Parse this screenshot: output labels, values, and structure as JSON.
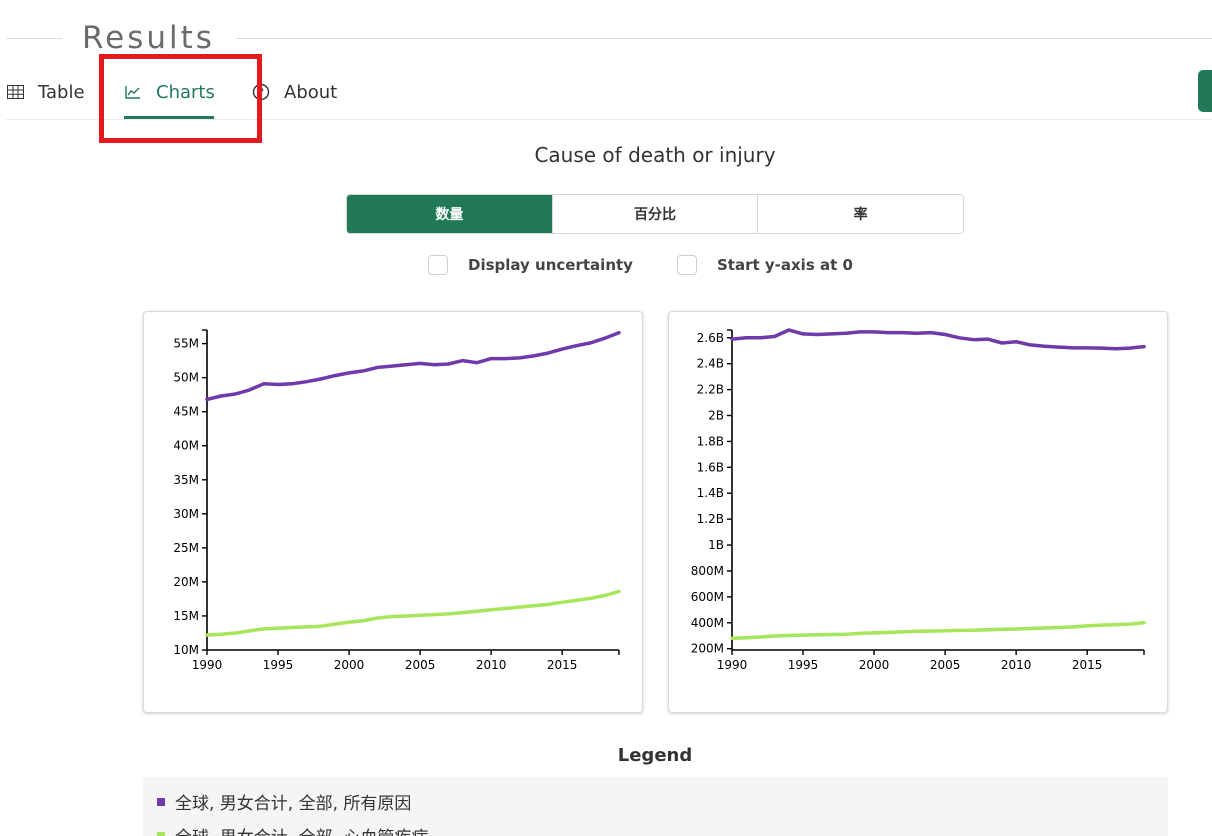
{
  "header": {
    "title": "Results"
  },
  "tabs": [
    {
      "label": "Table",
      "icon": "table-grid-icon"
    },
    {
      "label": "Charts",
      "icon": "line-chart-icon"
    },
    {
      "label": "About",
      "icon": "help-circle-icon"
    }
  ],
  "section_title": "Cause of death or injury",
  "metric_toggle": {
    "options": [
      "数量",
      "百分比",
      "率"
    ],
    "selected": "数量"
  },
  "options": {
    "uncertainty_label": "Display uncertainty",
    "yzero_label": "Start y-axis at 0"
  },
  "legend": {
    "title": "Legend",
    "items": [
      {
        "label": "全球, 男女合计, 全部, 所有原因",
        "color": "#6f3aab"
      },
      {
        "label": "全球, 男女合计, 全部, 心血管疾病",
        "color": "#a7e65a"
      }
    ]
  },
  "colors": {
    "accent": "#217a55",
    "highlight": "#e3191b"
  },
  "chart_data": [
    {
      "type": "line",
      "title": "",
      "xlabel": "",
      "ylabel": "",
      "xlim": [
        1990,
        2019
      ],
      "ylim": [
        10000000,
        57000000
      ],
      "x_ticks": [
        1990,
        1995,
        2000,
        2005,
        2010,
        2015
      ],
      "y_ticks": [
        10000000,
        15000000,
        20000000,
        25000000,
        30000000,
        35000000,
        40000000,
        45000000,
        50000000,
        55000000
      ],
      "y_tick_labels": [
        "10M",
        "15M",
        "20M",
        "25M",
        "30M",
        "35M",
        "40M",
        "45M",
        "50M",
        "55M"
      ],
      "x": [
        1990,
        1991,
        1992,
        1993,
        1994,
        1995,
        1996,
        1997,
        1998,
        1999,
        2000,
        2001,
        2002,
        2003,
        2004,
        2005,
        2006,
        2007,
        2008,
        2009,
        2010,
        2011,
        2012,
        2013,
        2014,
        2015,
        2016,
        2017,
        2018,
        2019
      ],
      "series": [
        {
          "name": "全球, 男女合计, 全部, 所有原因",
          "color": "#6f3aab",
          "values": [
            46800000,
            47300000,
            47600000,
            48200000,
            49100000,
            49000000,
            49100000,
            49400000,
            49800000,
            50300000,
            50700000,
            51000000,
            51500000,
            51700000,
            51900000,
            52100000,
            51900000,
            52000000,
            52500000,
            52200000,
            52800000,
            52800000,
            52900000,
            53200000,
            53600000,
            54200000,
            54700000,
            55100000,
            55800000,
            56600000
          ]
        },
        {
          "name": "全球, 男女合计, 全部, 心血管疾病",
          "color": "#a7e65a",
          "values": [
            12200000,
            12300000,
            12500000,
            12800000,
            13100000,
            13200000,
            13300000,
            13400000,
            13500000,
            13800000,
            14100000,
            14300000,
            14700000,
            14900000,
            15000000,
            15100000,
            15200000,
            15300000,
            15500000,
            15700000,
            15900000,
            16100000,
            16300000,
            16500000,
            16700000,
            17000000,
            17300000,
            17600000,
            18000000,
            18600000
          ]
        }
      ]
    },
    {
      "type": "line",
      "title": "",
      "xlabel": "",
      "ylabel": "",
      "xlim": [
        1990,
        2019
      ],
      "ylim": [
        190000000,
        2660000000
      ],
      "x_ticks": [
        1990,
        1995,
        2000,
        2005,
        2010,
        2015
      ],
      "y_ticks": [
        200000000,
        400000000,
        600000000,
        800000000,
        1000000000,
        1200000000,
        1400000000,
        1600000000,
        1800000000,
        2000000000,
        2200000000,
        2400000000,
        2600000000
      ],
      "y_tick_labels": [
        "200M",
        "400M",
        "600M",
        "800M",
        "1B",
        "1.2B",
        "1.4B",
        "1.6B",
        "1.8B",
        "2B",
        "2.2B",
        "2.4B",
        "2.6B"
      ],
      "x": [
        1990,
        1991,
        1992,
        1993,
        1994,
        1995,
        1996,
        1997,
        1998,
        1999,
        2000,
        2001,
        2002,
        2003,
        2004,
        2005,
        2006,
        2007,
        2008,
        2009,
        2010,
        2011,
        2012,
        2013,
        2014,
        2015,
        2016,
        2017,
        2018,
        2019
      ],
      "series": [
        {
          "name": "全球, 男女合计, 全部, 所有原因",
          "color": "#6f3aab",
          "values": [
            2590000000,
            2600000000,
            2600000000,
            2610000000,
            2660000000,
            2630000000,
            2625000000,
            2630000000,
            2635000000,
            2645000000,
            2645000000,
            2640000000,
            2640000000,
            2635000000,
            2640000000,
            2625000000,
            2600000000,
            2585000000,
            2590000000,
            2560000000,
            2570000000,
            2545000000,
            2535000000,
            2528000000,
            2522000000,
            2522000000,
            2520000000,
            2516000000,
            2520000000,
            2532000000
          ]
        },
        {
          "name": "全球, 男女合计, 全部, 心血管疾病",
          "color": "#a7e65a",
          "values": [
            280000000,
            285000000,
            290000000,
            298000000,
            302000000,
            305000000,
            308000000,
            310000000,
            312000000,
            318000000,
            322000000,
            326000000,
            330000000,
            334000000,
            336000000,
            339000000,
            341000000,
            343000000,
            346000000,
            349000000,
            352000000,
            356000000,
            360000000,
            364000000,
            368000000,
            376000000,
            382000000,
            386000000,
            390000000,
            400000000
          ]
        }
      ]
    }
  ]
}
